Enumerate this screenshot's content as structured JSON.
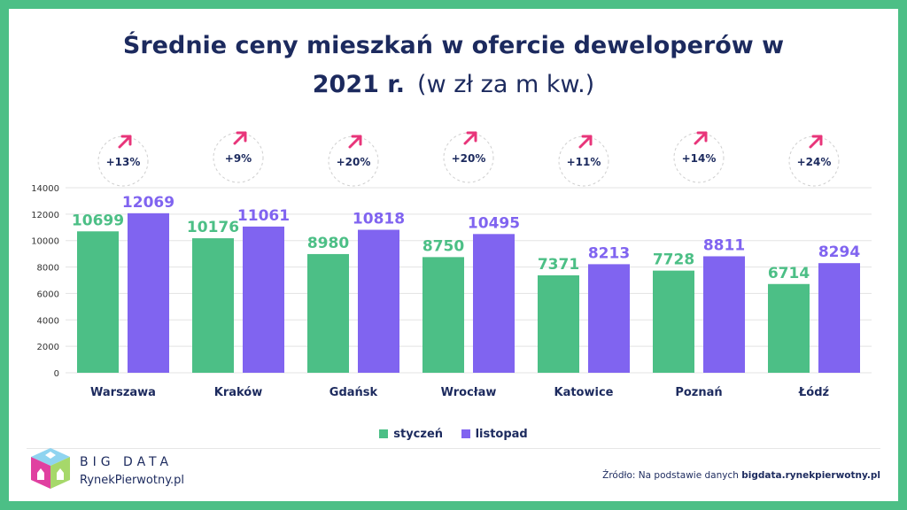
{
  "title_line1": "Średnie ceny mieszkań w ofercie deweloperów w",
  "title_line2_bold": "2021 r.",
  "title_line2_rest": "(w zł za m kw.)",
  "colors": {
    "styczen": "#4cbf86",
    "listopad": "#8064f0",
    "arrow": "#e8357a",
    "text": "#1c2a5e",
    "frame": "#4cbf86"
  },
  "chart_data": {
    "type": "bar",
    "title": "Średnie ceny mieszkań w ofercie deweloperów w 2021 r. (w zł za m kw.)",
    "categories": [
      "Warszawa",
      "Kraków",
      "Gdańsk",
      "Wrocław",
      "Katowice",
      "Poznań",
      "Łódź"
    ],
    "series": [
      {
        "name": "styczeń",
        "values": [
          10699,
          10176,
          8980,
          8750,
          7371,
          7728,
          6714
        ]
      },
      {
        "name": "listopad",
        "values": [
          12069,
          11061,
          10818,
          10495,
          8213,
          8811,
          8294
        ]
      }
    ],
    "changes": [
      "+13%",
      "+9%",
      "+20%",
      "+20%",
      "+11%",
      "+14%",
      "+24%"
    ],
    "ylim": [
      0,
      14000
    ],
    "yticks": [
      0,
      2000,
      4000,
      6000,
      8000,
      10000,
      12000,
      14000
    ],
    "grid": true,
    "legend_position": "bottom"
  },
  "legend": {
    "styczen": "styczeń",
    "listopad": "listopad"
  },
  "brand": {
    "line1": "BIG DATA",
    "line2": "RynekPierwotny.pl"
  },
  "source": {
    "prefix": "Źródło: Na podstawie danych",
    "site": "bigdata.rynekpierwotny.pl"
  }
}
